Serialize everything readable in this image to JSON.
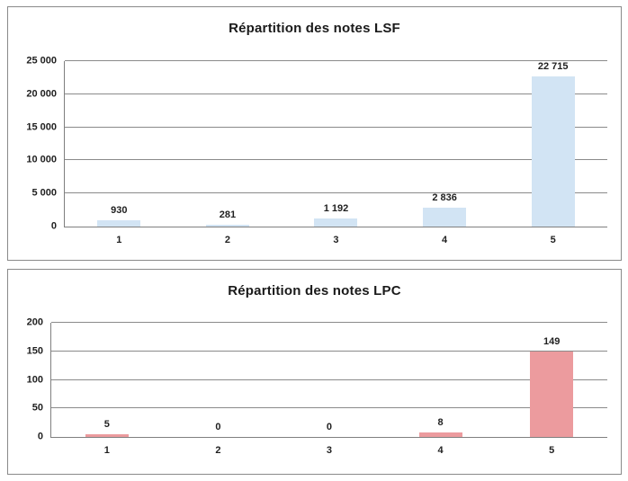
{
  "style": {
    "page_background": "#ffffff",
    "panel_border_color": "#8a8a8a",
    "grid_color": "#8a8a8a",
    "axis_color": "#7f7f7f",
    "text_color": "#1f1f1f"
  },
  "chart_data": [
    {
      "type": "bar",
      "title": "Répartition des notes LSF",
      "categories": [
        "1",
        "2",
        "3",
        "4",
        "5"
      ],
      "values": [
        930,
        281,
        1192,
        2836,
        22715
      ],
      "data_labels": [
        "930",
        "281",
        "1 192",
        "2 836",
        "22 715"
      ],
      "y_ticks": {
        "values": [
          0,
          5000,
          10000,
          15000,
          20000,
          25000
        ],
        "labels": [
          "0",
          "5 000",
          "10 000",
          "15 000",
          "20 000",
          "25 000"
        ]
      },
      "xlabel": "",
      "ylabel": "",
      "ylim": [
        0,
        25000
      ],
      "grid": true,
      "legend": "none",
      "bar_fill": "#d2e4f4"
    },
    {
      "type": "bar",
      "title": "Répartition des notes LPC",
      "categories": [
        "1",
        "2",
        "3",
        "4",
        "5"
      ],
      "values": [
        5,
        0,
        0,
        8,
        149
      ],
      "data_labels": [
        "5",
        "0",
        "0",
        "8",
        "149"
      ],
      "y_ticks": {
        "values": [
          0,
          50,
          100,
          150,
          200
        ],
        "labels": [
          "0",
          "50",
          "100",
          "150",
          "200"
        ]
      },
      "xlabel": "",
      "ylabel": "",
      "ylim": [
        0,
        200
      ],
      "grid": true,
      "legend": "none",
      "bar_fill": "#ec9b9e"
    }
  ]
}
